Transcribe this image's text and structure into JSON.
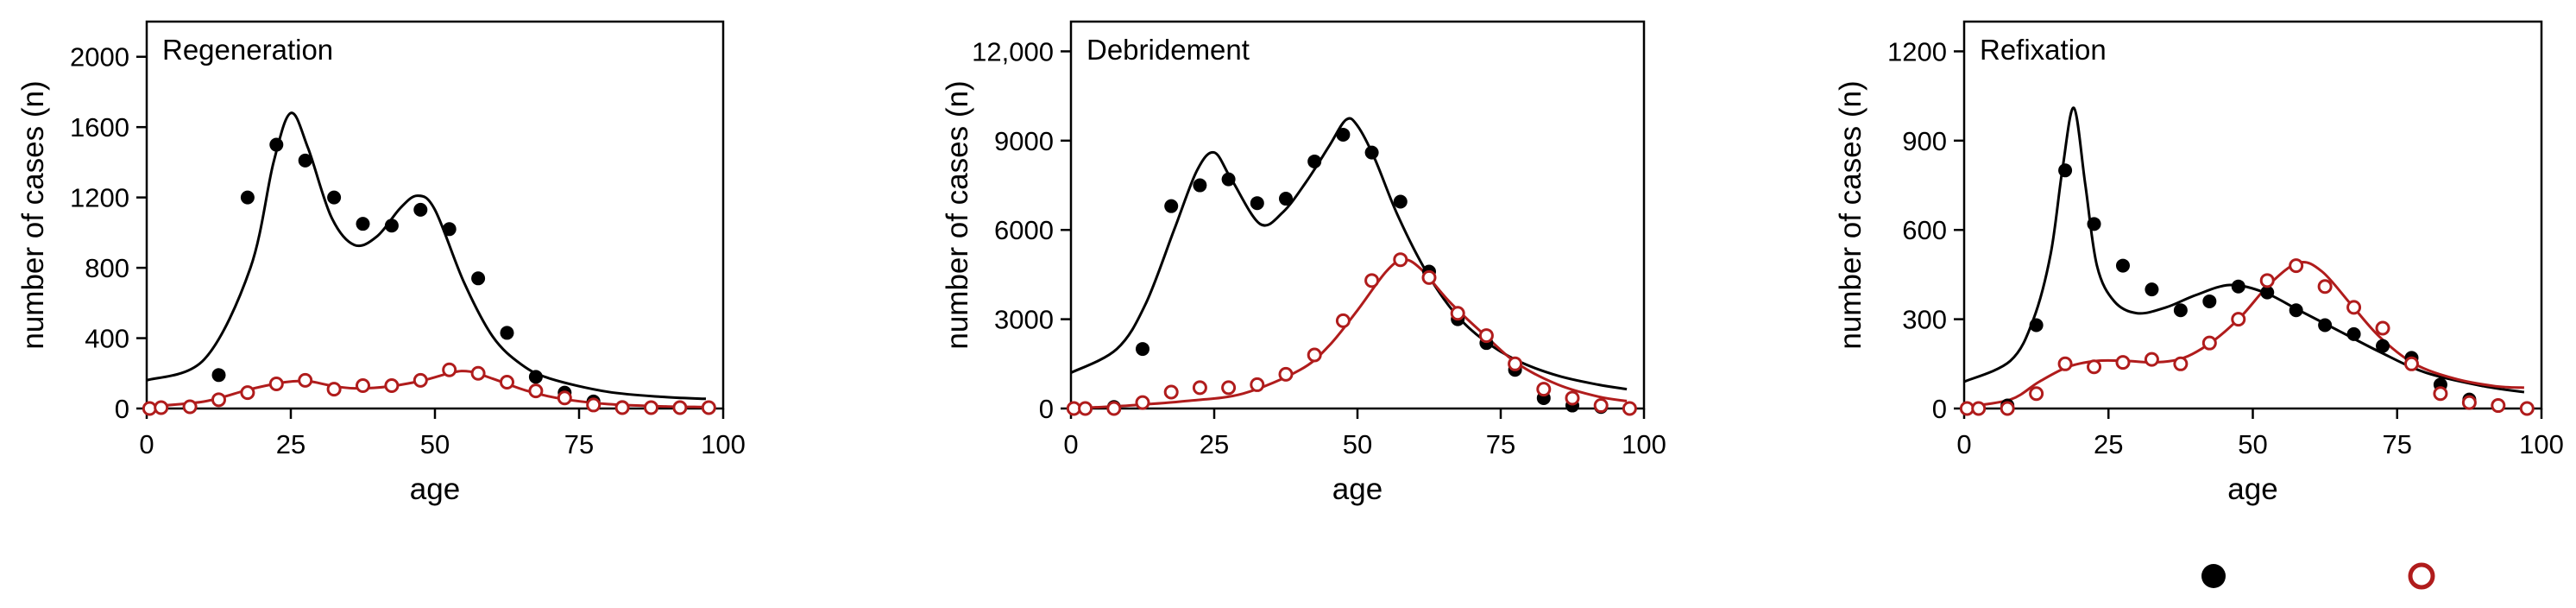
{
  "figure": {
    "colors": {
      "male": "#000000",
      "female": "#b01c1c",
      "axis": "#000000"
    }
  },
  "chart_data": [
    {
      "type": "scatter",
      "title": "Regeneration",
      "xlabel": "age",
      "ylabel": "number of cases (n)",
      "xlim": [
        0,
        100
      ],
      "ylim": [
        0,
        2200
      ],
      "xticks": [
        "0",
        "25",
        "50",
        "75",
        "100"
      ],
      "yticks": [
        "0",
        "400",
        "800",
        "1200",
        "1600",
        "2000"
      ],
      "x": [
        0.5,
        2.5,
        7.5,
        12.5,
        17.5,
        22.5,
        27.5,
        32.5,
        37.5,
        42.5,
        47.5,
        52.5,
        57.5,
        62.5,
        67.5,
        72.5,
        77.5,
        82.5,
        87.5,
        92.5,
        97.5
      ],
      "series": [
        {
          "name": "filled",
          "style": "filled",
          "points": [
            0,
            5,
            10,
            190,
            1200,
            1500,
            1410,
            1200,
            1050,
            1040,
            1130,
            1020,
            740,
            430,
            180,
            90,
            40,
            8,
            5,
            5,
            5
          ],
          "fit": [
            [
              0,
              160
            ],
            [
              10,
              280
            ],
            [
              18,
              800
            ],
            [
              22,
              1400
            ],
            [
              25,
              1680
            ],
            [
              28,
              1480
            ],
            [
              32,
              1090
            ],
            [
              36,
              930
            ],
            [
              40,
              980
            ],
            [
              44,
              1140
            ],
            [
              47,
              1210
            ],
            [
              50,
              1130
            ],
            [
              55,
              720
            ],
            [
              60,
              410
            ],
            [
              65,
              250
            ],
            [
              70,
              170
            ],
            [
              80,
              95
            ],
            [
              90,
              65
            ],
            [
              97,
              55
            ]
          ]
        },
        {
          "name": "open",
          "style": "open",
          "points": [
            0,
            5,
            10,
            50,
            90,
            140,
            160,
            110,
            130,
            130,
            160,
            220,
            200,
            150,
            100,
            60,
            20,
            5,
            5,
            5,
            5
          ],
          "fit": [
            [
              0,
              10
            ],
            [
              10,
              40
            ],
            [
              18,
              110
            ],
            [
              24,
              150
            ],
            [
              28,
              155
            ],
            [
              32,
              130
            ],
            [
              36,
              115
            ],
            [
              42,
              125
            ],
            [
              48,
              160
            ],
            [
              53,
              205
            ],
            [
              56,
              210
            ],
            [
              60,
              170
            ],
            [
              66,
              100
            ],
            [
              72,
              55
            ],
            [
              80,
              25
            ],
            [
              90,
              12
            ],
            [
              97,
              8
            ]
          ]
        }
      ]
    },
    {
      "type": "scatter",
      "title": "Debridement",
      "xlabel": "age",
      "ylabel": "number of cases (n)",
      "xlim": [
        0,
        100
      ],
      "ylim": [
        0,
        13000
      ],
      "xticks": [
        "0",
        "25",
        "50",
        "75",
        "100"
      ],
      "yticks": [
        "0",
        "3000",
        "6000",
        "9000",
        "12,000"
      ],
      "x": [
        0.5,
        2.5,
        7.5,
        12.5,
        17.5,
        22.5,
        27.5,
        32.5,
        37.5,
        42.5,
        47.5,
        52.5,
        57.5,
        62.5,
        67.5,
        72.5,
        77.5,
        82.5,
        87.5,
        92.5,
        97.5
      ],
      "series": [
        {
          "name": "filled",
          "style": "filled",
          "points": [
            0,
            0,
            50,
            2000,
            6800,
            7500,
            7700,
            6900,
            7050,
            8300,
            9200,
            8600,
            6950,
            4600,
            3000,
            2200,
            1300,
            350,
            100,
            50,
            0
          ],
          "fit": [
            [
              0,
              1200
            ],
            [
              8,
              2000
            ],
            [
              13,
              3500
            ],
            [
              18,
              6000
            ],
            [
              22,
              8000
            ],
            [
              25,
              8600
            ],
            [
              28,
              7700
            ],
            [
              33,
              6200
            ],
            [
              37,
              6600
            ],
            [
              41,
              7600
            ],
            [
              45,
              8800
            ],
            [
              48,
              9700
            ],
            [
              50,
              9500
            ],
            [
              53,
              8400
            ],
            [
              57,
              6500
            ],
            [
              62,
              4600
            ],
            [
              67,
              3200
            ],
            [
              72,
              2300
            ],
            [
              78,
              1600
            ],
            [
              85,
              1100
            ],
            [
              92,
              800
            ],
            [
              97,
              650
            ]
          ]
        },
        {
          "name": "open",
          "style": "open",
          "points": [
            0,
            0,
            0,
            200,
            550,
            700,
            700,
            800,
            1150,
            1800,
            2950,
            4300,
            5000,
            4400,
            3200,
            2450,
            1500,
            650,
            350,
            100,
            0
          ],
          "fit": [
            [
              0,
              0
            ],
            [
              10,
              100
            ],
            [
              20,
              250
            ],
            [
              30,
              500
            ],
            [
              40,
              1300
            ],
            [
              45,
              2100
            ],
            [
              50,
              3300
            ],
            [
              55,
              4600
            ],
            [
              58,
              5000
            ],
            [
              61,
              4700
            ],
            [
              66,
              3600
            ],
            [
              72,
              2500
            ],
            [
              78,
              1500
            ],
            [
              85,
              800
            ],
            [
              92,
              400
            ],
            [
              97,
              250
            ]
          ]
        }
      ]
    },
    {
      "type": "scatter",
      "title": "Refixation",
      "xlabel": "age",
      "ylabel": "number of cases (n)",
      "xlim": [
        0,
        100
      ],
      "ylim": [
        0,
        1300
      ],
      "xticks": [
        "0",
        "25",
        "50",
        "75",
        "100"
      ],
      "yticks": [
        "0",
        "300",
        "600",
        "900",
        "1200"
      ],
      "x": [
        0.5,
        2.5,
        7.5,
        12.5,
        17.5,
        22.5,
        27.5,
        32.5,
        37.5,
        42.5,
        47.5,
        52.5,
        57.5,
        62.5,
        67.5,
        72.5,
        77.5,
        82.5,
        87.5,
        92.5,
        97.5
      ],
      "series": [
        {
          "name": "filled",
          "style": "filled",
          "points": [
            0,
            0,
            10,
            280,
            800,
            620,
            480,
            400,
            330,
            360,
            410,
            390,
            330,
            280,
            250,
            210,
            170,
            80,
            30,
            10,
            0
          ],
          "fit": [
            [
              0,
              90
            ],
            [
              8,
              160
            ],
            [
              12,
              300
            ],
            [
              15,
              520
            ],
            [
              17,
              800
            ],
            [
              19,
              1010
            ],
            [
              21,
              750
            ],
            [
              23,
              480
            ],
            [
              26,
              360
            ],
            [
              30,
              320
            ],
            [
              35,
              340
            ],
            [
              40,
              380
            ],
            [
              46,
              415
            ],
            [
              52,
              390
            ],
            [
              58,
              330
            ],
            [
              65,
              260
            ],
            [
              72,
              190
            ],
            [
              80,
              120
            ],
            [
              90,
              75
            ],
            [
              97,
              55
            ]
          ]
        },
        {
          "name": "open",
          "style": "open",
          "points": [
            0,
            0,
            0,
            50,
            150,
            140,
            155,
            165,
            150,
            220,
            300,
            430,
            480,
            410,
            340,
            270,
            150,
            50,
            20,
            10,
            0
          ],
          "fit": [
            [
              0,
              5
            ],
            [
              8,
              30
            ],
            [
              13,
              90
            ],
            [
              18,
              140
            ],
            [
              23,
              160
            ],
            [
              28,
              160
            ],
            [
              33,
              155
            ],
            [
              38,
              170
            ],
            [
              43,
              225
            ],
            [
              48,
              310
            ],
            [
              53,
              420
            ],
            [
              58,
              490
            ],
            [
              62,
              460
            ],
            [
              67,
              350
            ],
            [
              72,
              240
            ],
            [
              78,
              150
            ],
            [
              85,
              100
            ],
            [
              92,
              75
            ],
            [
              97,
              70
            ]
          ]
        }
      ]
    }
  ]
}
